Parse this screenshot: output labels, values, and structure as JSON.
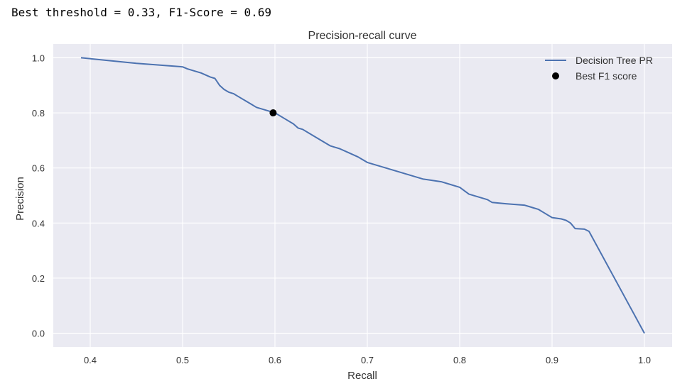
{
  "output": {
    "text": "Best threshold = 0.33, F1-Score = 0.69"
  },
  "chart_data": {
    "type": "line",
    "title": "Precision-recall curve",
    "xlabel": "Recall",
    "ylabel": "Precision",
    "xlim": [
      0.36,
      1.03
    ],
    "ylim": [
      -0.05,
      1.05
    ],
    "xticks": [
      0.4,
      0.5,
      0.6,
      0.7,
      0.8,
      0.9,
      1.0
    ],
    "xtick_labels": [
      "0.4",
      "0.5",
      "0.6",
      "0.7",
      "0.8",
      "0.9",
      "1.0"
    ],
    "yticks": [
      0.0,
      0.2,
      0.4,
      0.6,
      0.8,
      1.0
    ],
    "ytick_labels": [
      "0.0",
      "0.2",
      "0.4",
      "0.6",
      "0.8",
      "1.0"
    ],
    "grid": true,
    "legend_position": "top-right",
    "series": [
      {
        "name": "Decision Tree PR",
        "kind": "line",
        "color": "#4c72b0",
        "x": [
          0.39,
          0.45,
          0.5,
          0.505,
          0.51,
          0.52,
          0.53,
          0.535,
          0.54,
          0.545,
          0.55,
          0.555,
          0.56,
          0.57,
          0.575,
          0.58,
          0.59,
          0.6,
          0.61,
          0.62,
          0.625,
          0.63,
          0.64,
          0.65,
          0.66,
          0.665,
          0.67,
          0.68,
          0.69,
          0.7,
          0.71,
          0.72,
          0.73,
          0.75,
          0.76,
          0.78,
          0.79,
          0.8,
          0.81,
          0.82,
          0.83,
          0.835,
          0.85,
          0.87,
          0.875,
          0.88,
          0.885,
          0.89,
          0.9,
          0.91,
          0.915,
          0.92,
          0.925,
          0.935,
          0.94,
          1.0
        ],
        "y": [
          1.0,
          0.98,
          0.967,
          0.96,
          0.955,
          0.945,
          0.93,
          0.925,
          0.9,
          0.885,
          0.875,
          0.87,
          0.86,
          0.84,
          0.83,
          0.82,
          0.81,
          0.8,
          0.78,
          0.76,
          0.745,
          0.74,
          0.72,
          0.7,
          0.68,
          0.675,
          0.67,
          0.655,
          0.64,
          0.62,
          0.61,
          0.6,
          0.59,
          0.57,
          0.56,
          0.55,
          0.54,
          0.53,
          0.505,
          0.495,
          0.485,
          0.475,
          0.47,
          0.465,
          0.46,
          0.455,
          0.45,
          0.44,
          0.42,
          0.415,
          0.41,
          0.4,
          0.38,
          0.378,
          0.37,
          0.0
        ]
      },
      {
        "name": "Best F1 score",
        "kind": "scatter",
        "color": "#000000",
        "x": [
          0.598
        ],
        "y": [
          0.8
        ]
      }
    ]
  }
}
